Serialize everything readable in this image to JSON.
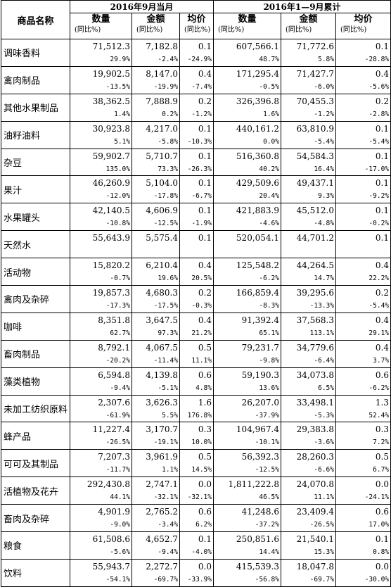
{
  "header": {
    "product_name": "商品名称",
    "group_month": "2016年9月当月",
    "group_ytd": "2016年1—9月累计",
    "col_qty": "数量",
    "col_amt": "金额",
    "col_price": "均价",
    "yoy": "(同比%)"
  },
  "rows": [
    {
      "name": "调味香料",
      "m": [
        {
          "v": "71,512.3",
          "y": "29.9%"
        },
        {
          "v": "7,182.8",
          "y": "-2.4%"
        },
        {
          "v": "0.1",
          "y": "-24.9%"
        }
      ],
      "c": [
        {
          "v": "607,566.1",
          "y": "48.7%"
        },
        {
          "v": "71,772.6",
          "y": "5.8%"
        },
        {
          "v": "0.1",
          "y": "-28.8%"
        }
      ]
    },
    {
      "name": "禽肉制品",
      "m": [
        {
          "v": "19,902.5",
          "y": "-13.5%"
        },
        {
          "v": "8,147.0",
          "y": "-19.9%"
        },
        {
          "v": "0.4",
          "y": "-7.4%"
        }
      ],
      "c": [
        {
          "v": "171,295.4",
          "y": "-0.5%"
        },
        {
          "v": "71,427.7",
          "y": "-6.0%"
        },
        {
          "v": "0.4",
          "y": "-5.6%"
        }
      ]
    },
    {
      "name": "其他水果制品",
      "m": [
        {
          "v": "38,362.5",
          "y": "1.4%"
        },
        {
          "v": "7,888.9",
          "y": "0.2%"
        },
        {
          "v": "0.2",
          "y": "-1.2%"
        }
      ],
      "c": [
        {
          "v": "326,396.8",
          "y": "1.6%"
        },
        {
          "v": "70,455.3",
          "y": "-1.2%"
        },
        {
          "v": "0.2",
          "y": "-2.8%"
        }
      ]
    },
    {
      "name": "油籽油料",
      "m": [
        {
          "v": "30,923.8",
          "y": "5.1%"
        },
        {
          "v": "4,217.0",
          "y": "-5.8%"
        },
        {
          "v": "0.1",
          "y": "-10.3%"
        }
      ],
      "c": [
        {
          "v": "440,161.2",
          "y": "0.0%"
        },
        {
          "v": "63,810.9",
          "y": "-5.4%"
        },
        {
          "v": "0.1",
          "y": "-5.4%"
        }
      ]
    },
    {
      "name": "杂豆",
      "m": [
        {
          "v": "59,902.7",
          "y": "135.0%"
        },
        {
          "v": "5,710.7",
          "y": "73.3%"
        },
        {
          "v": "0.1",
          "y": "-26.3%"
        }
      ],
      "c": [
        {
          "v": "516,360.8",
          "y": "40.2%"
        },
        {
          "v": "54,584.3",
          "y": "16.4%"
        },
        {
          "v": "0.1",
          "y": "-17.0%"
        }
      ]
    },
    {
      "name": "果汁",
      "m": [
        {
          "v": "46,260.9",
          "y": "-12.0%"
        },
        {
          "v": "5,104.0",
          "y": "-17.8%"
        },
        {
          "v": "0.1",
          "y": "-6.7%"
        }
      ],
      "c": [
        {
          "v": "429,509.6",
          "y": "20.4%"
        },
        {
          "v": "49,437.1",
          "y": "9.3%"
        },
        {
          "v": "0.1",
          "y": "-9.2%"
        }
      ]
    },
    {
      "name": "水果罐头",
      "m": [
        {
          "v": "42,140.5",
          "y": "-10.8%"
        },
        {
          "v": "4,606.9",
          "y": "-12.5%"
        },
        {
          "v": "0.1",
          "y": "-1.9%"
        }
      ],
      "c": [
        {
          "v": "421,883.9",
          "y": "-4.6%"
        },
        {
          "v": "45,512.0",
          "y": "-4.8%"
        },
        {
          "v": "0.1",
          "y": "-0.2%"
        }
      ]
    },
    {
      "name": "天然水",
      "m": [
        {
          "v": "55,643.9",
          "y": ""
        },
        {
          "v": "5,575.4",
          "y": ""
        },
        {
          "v": "0.1",
          "y": ""
        }
      ],
      "c": [
        {
          "v": "520,054.1",
          "y": ""
        },
        {
          "v": "44,701.2",
          "y": ""
        },
        {
          "v": "0.1",
          "y": ""
        }
      ]
    },
    {
      "name": "活动物",
      "m": [
        {
          "v": "15,820.2",
          "y": "-0.7%"
        },
        {
          "v": "6,210.4",
          "y": "19.6%"
        },
        {
          "v": "0.4",
          "y": "20.5%"
        }
      ],
      "c": [
        {
          "v": "125,548.2",
          "y": "-6.2%"
        },
        {
          "v": "44,264.5",
          "y": "14.7%"
        },
        {
          "v": "0.4",
          "y": "22.2%"
        }
      ]
    },
    {
      "name": "禽肉及杂碎",
      "m": [
        {
          "v": "19,857.3",
          "y": "-17.3%"
        },
        {
          "v": "4,680.3",
          "y": "-17.5%"
        },
        {
          "v": "0.2",
          "y": "-0.3%"
        }
      ],
      "c": [
        {
          "v": "166,859.4",
          "y": "-8.3%"
        },
        {
          "v": "39,295.6",
          "y": "-13.3%"
        },
        {
          "v": "0.2",
          "y": "-5.4%"
        }
      ]
    },
    {
      "name": "咖啡",
      "m": [
        {
          "v": "8,351.8",
          "y": "62.7%"
        },
        {
          "v": "3,647.5",
          "y": "97.3%"
        },
        {
          "v": "0.4",
          "y": "21.2%"
        }
      ],
      "c": [
        {
          "v": "91,392.4",
          "y": "65.1%"
        },
        {
          "v": "37,568.3",
          "y": "113.1%"
        },
        {
          "v": "0.4",
          "y": "29.1%"
        }
      ]
    },
    {
      "name": "畜肉制品",
      "m": [
        {
          "v": "8,792.1",
          "y": "-20.2%"
        },
        {
          "v": "4,067.5",
          "y": "-11.4%"
        },
        {
          "v": "0.5",
          "y": "11.1%"
        }
      ],
      "c": [
        {
          "v": "79,231.7",
          "y": "-9.8%"
        },
        {
          "v": "34,779.6",
          "y": "-6.4%"
        },
        {
          "v": "0.4",
          "y": "3.7%"
        }
      ]
    },
    {
      "name": "藻类植物",
      "m": [
        {
          "v": "6,594.8",
          "y": "-9.4%"
        },
        {
          "v": "4,139.8",
          "y": "-5.1%"
        },
        {
          "v": "0.6",
          "y": "4.8%"
        }
      ],
      "c": [
        {
          "v": "59,190.3",
          "y": "13.6%"
        },
        {
          "v": "34,073.8",
          "y": "6.5%"
        },
        {
          "v": "0.6",
          "y": "-6.2%"
        }
      ]
    },
    {
      "name": "未加工纺织原料",
      "m": [
        {
          "v": "2,307.6",
          "y": "-61.9%"
        },
        {
          "v": "3,626.3",
          "y": "5.5%"
        },
        {
          "v": "1.6",
          "y": "176.8%"
        }
      ],
      "c": [
        {
          "v": "26,207.0",
          "y": "-37.9%"
        },
        {
          "v": "33,498.1",
          "y": "-5.3%"
        },
        {
          "v": "1.3",
          "y": "52.4%"
        }
      ]
    },
    {
      "name": "蜂产品",
      "m": [
        {
          "v": "11,227.4",
          "y": "-26.5%"
        },
        {
          "v": "3,170.7",
          "y": "-19.1%"
        },
        {
          "v": "0.3",
          "y": "10.0%"
        }
      ],
      "c": [
        {
          "v": "104,967.4",
          "y": "-10.1%"
        },
        {
          "v": "29,383.8",
          "y": "-3.6%"
        },
        {
          "v": "0.3",
          "y": "7.2%"
        }
      ]
    },
    {
      "name": "可可及其制品",
      "m": [
        {
          "v": "7,207.3",
          "y": "-11.7%"
        },
        {
          "v": "3,961.9",
          "y": "1.1%"
        },
        {
          "v": "0.5",
          "y": "14.5%"
        }
      ],
      "c": [
        {
          "v": "56,392.3",
          "y": "-12.5%"
        },
        {
          "v": "28,260.3",
          "y": "-6.6%"
        },
        {
          "v": "0.5",
          "y": "6.7%"
        }
      ]
    },
    {
      "name": "活植物及花卉",
      "m": [
        {
          "v": "292,430.8",
          "y": "44.1%"
        },
        {
          "v": "2,747.1",
          "y": "-32.1%"
        },
        {
          "v": "0.0",
          "y": "-32.1%"
        }
      ],
      "c": [
        {
          "v": "1,811,222.8",
          "y": "46.5%"
        },
        {
          "v": "24,070.8",
          "y": "11.1%"
        },
        {
          "v": "0.0",
          "y": "-24.1%"
        }
      ]
    },
    {
      "name": "畜肉及杂碎",
      "m": [
        {
          "v": "4,901.9",
          "y": "-9.0%"
        },
        {
          "v": "2,765.2",
          "y": "-3.4%"
        },
        {
          "v": "0.6",
          "y": "6.2%"
        }
      ],
      "c": [
        {
          "v": "41,248.6",
          "y": "-37.2%"
        },
        {
          "v": "23,409.4",
          "y": "-26.5%"
        },
        {
          "v": "0.6",
          "y": "17.0%"
        }
      ]
    },
    {
      "name": "粮食",
      "m": [
        {
          "v": "61,508.6",
          "y": "-5.6%"
        },
        {
          "v": "4,652.7",
          "y": "-9.4%"
        },
        {
          "v": "0.1",
          "y": "-4.0%"
        }
      ],
      "c": [
        {
          "v": "250,851.6",
          "y": "14.4%"
        },
        {
          "v": "21,540.1",
          "y": "15.3%"
        },
        {
          "v": "0.1",
          "y": "0.8%"
        }
      ]
    },
    {
      "name": "饮料",
      "m": [
        {
          "v": "55,943.7",
          "y": "-54.1%"
        },
        {
          "v": "2,272.7",
          "y": "-69.7%"
        },
        {
          "v": "0.0",
          "y": "-33.9%"
        }
      ],
      "c": [
        {
          "v": "415,539.3",
          "y": "-56.8%"
        },
        {
          "v": "18,047.8",
          "y": "-69.7%"
        },
        {
          "v": "0.0",
          "y": "-30.0%"
        }
      ]
    }
  ]
}
